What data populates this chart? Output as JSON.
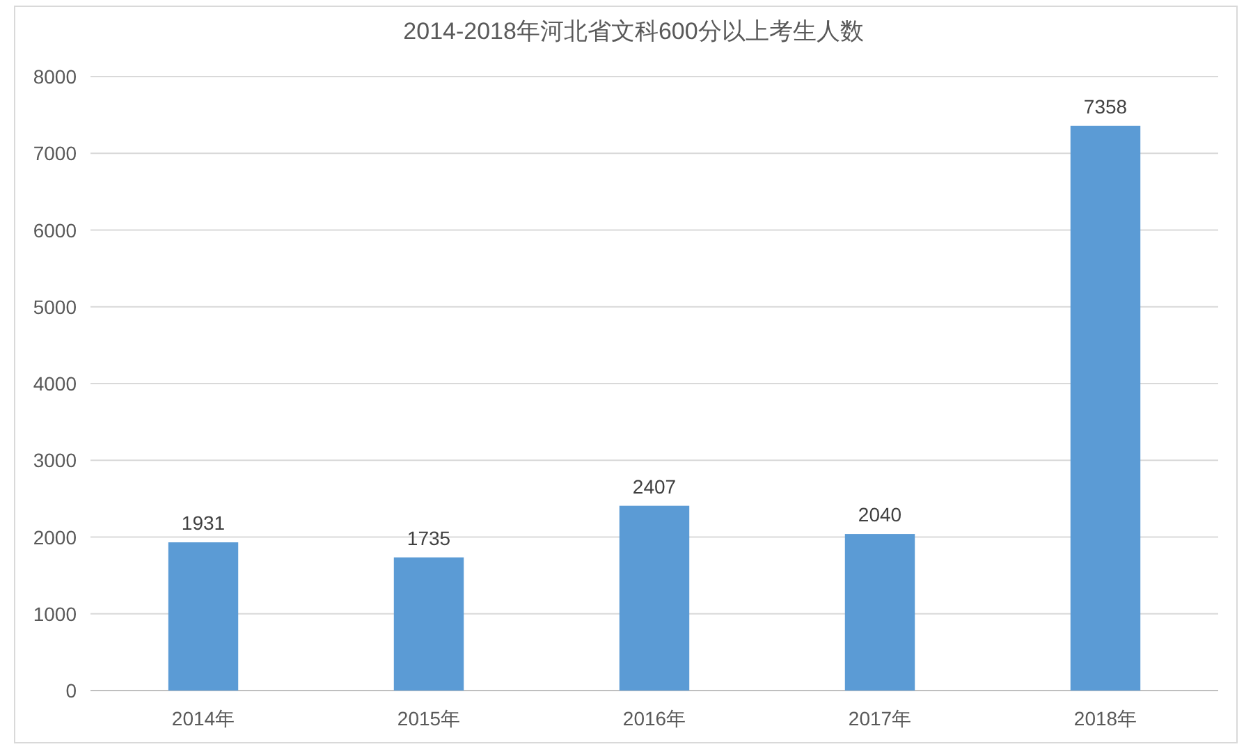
{
  "chart_data": {
    "type": "bar",
    "title": "2014-2018年河北省文科600分以上考生人数",
    "categories": [
      "2014年",
      "2015年",
      "2016年",
      "2017年",
      "2018年"
    ],
    "values": [
      1931,
      1735,
      2407,
      2040,
      7358
    ],
    "color": "#5b9bd5",
    "ylim": [
      0,
      8000
    ],
    "yticks": [
      0,
      1000,
      2000,
      3000,
      4000,
      5000,
      6000,
      7000,
      8000
    ],
    "grid": "y",
    "data_labels": true
  }
}
